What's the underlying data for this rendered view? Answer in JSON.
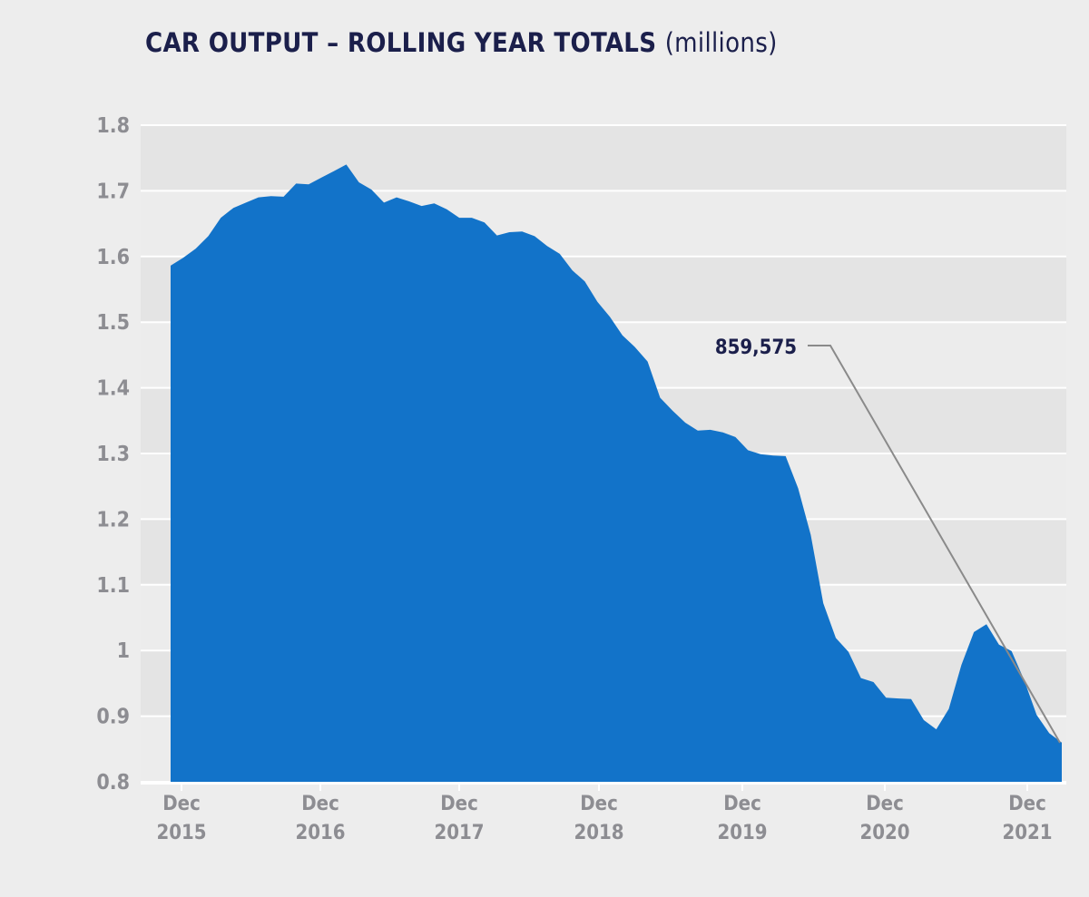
{
  "chart_data": {
    "type": "area",
    "title": "CAR OUTPUT – ROLLING YEAR TOTALS",
    "title_unit": "(millions)",
    "xlabel": "",
    "ylabel": "",
    "ylim": [
      0.8,
      1.8
    ],
    "yticks": [
      "0.8",
      "0.9",
      "1",
      "1.1",
      "1.2",
      "1.3",
      "1.4",
      "1.5",
      "1.6",
      "1.7",
      "1.8"
    ],
    "xticks": [
      {
        "month": "Dec",
        "year": "2015"
      },
      {
        "month": "Dec",
        "year": "2016"
      },
      {
        "month": "Dec",
        "year": "2017"
      },
      {
        "month": "Dec",
        "year": "2018"
      },
      {
        "month": "Dec",
        "year": "2019"
      },
      {
        "month": "Dec",
        "year": "2020"
      },
      {
        "month": "Dec",
        "year": "2021"
      }
    ],
    "grid": true,
    "banded_background": true,
    "x_start": "2016-01",
    "x_end": "2021-12",
    "x_interval": "monthly",
    "values": [
      1.586,
      1.598,
      1.612,
      1.631,
      1.659,
      1.674,
      1.682,
      1.69,
      1.692,
      1.691,
      1.711,
      1.71,
      1.72,
      1.73,
      1.74,
      1.713,
      1.702,
      1.682,
      1.69,
      1.684,
      1.677,
      1.681,
      1.672,
      1.659,
      1.659,
      1.652,
      1.632,
      1.637,
      1.638,
      1.631,
      1.616,
      1.604,
      1.579,
      1.562,
      1.531,
      1.508,
      1.48,
      1.462,
      1.44,
      1.385,
      1.365,
      1.347,
      1.335,
      1.336,
      1.332,
      1.325,
      1.305,
      1.299,
      1.297,
      1.296,
      1.247,
      1.176,
      1.072,
      1.019,
      0.998,
      0.958,
      0.952,
      0.928,
      0.927,
      0.926,
      0.894,
      0.88,
      0.911,
      0.978,
      1.028,
      1.04,
      1.009,
      0.999,
      0.955,
      0.902,
      0.874,
      0.8596
    ],
    "annotation": {
      "label": "859,575",
      "target": "last point"
    },
    "colors": {
      "area": "#1273c9",
      "title": "#1b1f4b",
      "ticks": "#8d8d92",
      "band_dark": "#e4e4e4",
      "band_light": "#ececec",
      "leader": "#8a8a8a"
    }
  }
}
